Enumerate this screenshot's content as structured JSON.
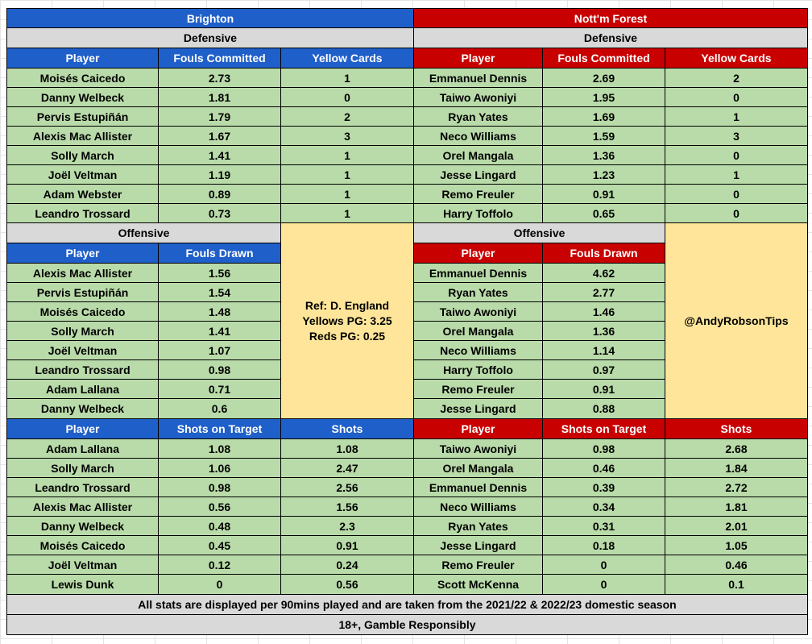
{
  "teams": {
    "home": "Brighton",
    "away": "Nott'm Forest"
  },
  "sections": {
    "defensive": "Defensive",
    "offensive": "Offensive"
  },
  "headers": {
    "player": "Player",
    "fouls_committed": "Fouls Committed",
    "yellow_cards": "Yellow Cards",
    "fouls_drawn": "Fouls Drawn",
    "shots_on_target": "Shots on Target",
    "shots": "Shots"
  },
  "home": {
    "defensive": [
      [
        "Moisés Caicedo",
        "2.73",
        "1"
      ],
      [
        "Danny Welbeck",
        "1.81",
        "0"
      ],
      [
        "Pervis Estupiñán",
        "1.79",
        "2"
      ],
      [
        "Alexis Mac Allister",
        "1.67",
        "3"
      ],
      [
        "Solly March",
        "1.41",
        "1"
      ],
      [
        "Joël Veltman",
        "1.19",
        "1"
      ],
      [
        "Adam Webster",
        "0.89",
        "1"
      ],
      [
        "Leandro Trossard",
        "0.73",
        "1"
      ]
    ],
    "offensive": [
      [
        "Alexis Mac Allister",
        "1.56"
      ],
      [
        "Pervis Estupiñán",
        "1.54"
      ],
      [
        "Moisés Caicedo",
        "1.48"
      ],
      [
        "Solly March",
        "1.41"
      ],
      [
        "Joël Veltman",
        "1.07"
      ],
      [
        "Leandro Trossard",
        "0.98"
      ],
      [
        "Adam Lallana",
        "0.71"
      ],
      [
        "Danny Welbeck",
        "0.6"
      ]
    ],
    "shots": [
      [
        "Adam Lallana",
        "1.08",
        "1.08"
      ],
      [
        "Solly March",
        "1.06",
        "2.47"
      ],
      [
        "Leandro Trossard",
        "0.98",
        "2.56"
      ],
      [
        "Alexis Mac Allister",
        "0.56",
        "1.56"
      ],
      [
        "Danny Welbeck",
        "0.48",
        "2.3"
      ],
      [
        "Moisés Caicedo",
        "0.45",
        "0.91"
      ],
      [
        "Joël Veltman",
        "0.12",
        "0.24"
      ],
      [
        "Lewis Dunk",
        "0",
        "0.56"
      ]
    ]
  },
  "away": {
    "defensive": [
      [
        "Emmanuel Dennis",
        "2.69",
        "2"
      ],
      [
        "Taiwo Awoniyi",
        "1.95",
        "0"
      ],
      [
        "Ryan Yates",
        "1.69",
        "1"
      ],
      [
        "Neco Williams",
        "1.59",
        "3"
      ],
      [
        "Orel Mangala",
        "1.36",
        "0"
      ],
      [
        "Jesse Lingard",
        "1.23",
        "1"
      ],
      [
        "Remo Freuler",
        "0.91",
        "0"
      ],
      [
        "Harry Toffolo",
        "0.65",
        "0"
      ]
    ],
    "offensive": [
      [
        "Emmanuel Dennis",
        "4.62"
      ],
      [
        "Ryan Yates",
        "2.77"
      ],
      [
        "Taiwo Awoniyi",
        "1.46"
      ],
      [
        "Orel Mangala",
        "1.36"
      ],
      [
        "Neco Williams",
        "1.14"
      ],
      [
        "Harry Toffolo",
        "0.97"
      ],
      [
        "Remo Freuler",
        "0.91"
      ],
      [
        "Jesse Lingard",
        "0.88"
      ]
    ],
    "shots": [
      [
        "Taiwo Awoniyi",
        "0.98",
        "2.68"
      ],
      [
        "Orel Mangala",
        "0.46",
        "1.84"
      ],
      [
        "Emmanuel Dennis",
        "0.39",
        "2.72"
      ],
      [
        "Neco Williams",
        "0.34",
        "1.81"
      ],
      [
        "Ryan Yates",
        "0.31",
        "2.01"
      ],
      [
        "Jesse Lingard",
        "0.18",
        "1.05"
      ],
      [
        "Remo Freuler",
        "0",
        "0.46"
      ],
      [
        "Scott McKenna",
        "0",
        "0.1"
      ]
    ]
  },
  "referee": {
    "name": "Ref: D. England",
    "yellows": "Yellows PG: 3.25",
    "reds": "Reds PG: 0.25"
  },
  "handle": "@AndyRobsonTips",
  "footer": {
    "note": "All stats are displayed per 90mins played and are taken from the 2021/22 & 2022/23 domestic season",
    "disclaimer": "18+, Gamble Responsibly"
  },
  "colors": {
    "home": "#1f5fc9",
    "away": "#c90000",
    "section": "#d9d9d9",
    "data": "#b9dba9",
    "info": "#fee599"
  }
}
